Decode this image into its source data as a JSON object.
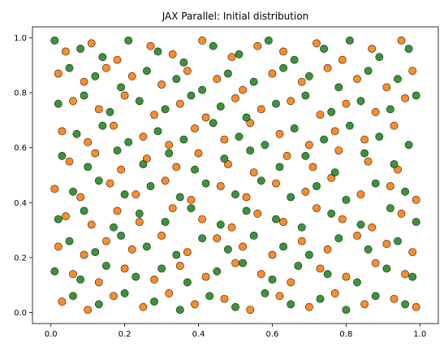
{
  "chart_data": {
    "type": "scatter",
    "title": "JAX Parallel: Initial distribution",
    "xlabel": "",
    "ylabel": "",
    "xlim": [
      -0.05,
      1.05
    ],
    "ylim": [
      -0.04,
      1.04
    ],
    "x_ticks": [
      0.0,
      0.2,
      0.4,
      0.6,
      0.8,
      1.0
    ],
    "x_tick_labels": [
      "0.0",
      "0.2",
      "0.4",
      "0.6",
      "0.8",
      "1.0"
    ],
    "y_ticks": [
      0.0,
      0.2,
      0.4,
      0.6,
      0.8,
      1.0
    ],
    "y_tick_labels": [
      "0.0",
      "0.2",
      "0.4",
      "0.6",
      "0.8",
      "1.0"
    ],
    "grid": false,
    "legend": "none",
    "series": [
      {
        "color": "#ff7f0e",
        "values": [
          [
            0.04,
            0.95
          ],
          [
            0.11,
            0.98
          ],
          [
            0.18,
            0.92
          ],
          [
            0.27,
            0.97
          ],
          [
            0.33,
            0.94
          ],
          [
            0.41,
            0.99
          ],
          [
            0.49,
            0.93
          ],
          [
            0.56,
            0.97
          ],
          [
            0.63,
            0.95
          ],
          [
            0.72,
            0.98
          ],
          [
            0.79,
            0.92
          ],
          [
            0.87,
            0.96
          ],
          [
            0.95,
            0.99
          ],
          [
            0.02,
            0.87
          ],
          [
            0.09,
            0.84
          ],
          [
            0.15,
            0.89
          ],
          [
            0.22,
            0.86
          ],
          [
            0.3,
            0.83
          ],
          [
            0.37,
            0.88
          ],
          [
            0.45,
            0.85
          ],
          [
            0.52,
            0.81
          ],
          [
            0.6,
            0.87
          ],
          [
            0.68,
            0.84
          ],
          [
            0.75,
            0.89
          ],
          [
            0.83,
            0.85
          ],
          [
            0.91,
            0.82
          ],
          [
            0.98,
            0.88
          ],
          [
            0.06,
            0.77
          ],
          [
            0.13,
            0.74
          ],
          [
            0.2,
            0.79
          ],
          [
            0.28,
            0.72
          ],
          [
            0.35,
            0.76
          ],
          [
            0.42,
            0.71
          ],
          [
            0.5,
            0.78
          ],
          [
            0.57,
            0.74
          ],
          [
            0.65,
            0.77
          ],
          [
            0.73,
            0.72
          ],
          [
            0.8,
            0.76
          ],
          [
            0.88,
            0.73
          ],
          [
            0.96,
            0.78
          ],
          [
            0.03,
            0.66
          ],
          [
            0.1,
            0.62
          ],
          [
            0.17,
            0.68
          ],
          [
            0.25,
            0.64
          ],
          [
            0.32,
            0.61
          ],
          [
            0.39,
            0.67
          ],
          [
            0.47,
            0.63
          ],
          [
            0.54,
            0.69
          ],
          [
            0.62,
            0.65
          ],
          [
            0.7,
            0.61
          ],
          [
            0.77,
            0.66
          ],
          [
            0.85,
            0.63
          ],
          [
            0.93,
            0.68
          ],
          [
            0.05,
            0.55
          ],
          [
            0.12,
            0.58
          ],
          [
            0.19,
            0.52
          ],
          [
            0.26,
            0.56
          ],
          [
            0.34,
            0.53
          ],
          [
            0.4,
            0.58
          ],
          [
            0.48,
            0.54
          ],
          [
            0.55,
            0.51
          ],
          [
            0.64,
            0.57
          ],
          [
            0.71,
            0.53
          ],
          [
            0.78,
            0.59
          ],
          [
            0.86,
            0.55
          ],
          [
            0.94,
            0.52
          ],
          [
            0.01,
            0.45
          ],
          [
            0.08,
            0.42
          ],
          [
            0.16,
            0.47
          ],
          [
            0.23,
            0.43
          ],
          [
            0.31,
            0.48
          ],
          [
            0.38,
            0.41
          ],
          [
            0.46,
            0.46
          ],
          [
            0.53,
            0.42
          ],
          [
            0.61,
            0.47
          ],
          [
            0.69,
            0.44
          ],
          [
            0.76,
            0.49
          ],
          [
            0.84,
            0.43
          ],
          [
            0.92,
            0.46
          ],
          [
            0.99,
            0.41
          ],
          [
            0.04,
            0.35
          ],
          [
            0.11,
            0.32
          ],
          [
            0.18,
            0.37
          ],
          [
            0.24,
            0.33
          ],
          [
            0.33,
            0.38
          ],
          [
            0.41,
            0.34
          ],
          [
            0.49,
            0.31
          ],
          [
            0.56,
            0.36
          ],
          [
            0.63,
            0.33
          ],
          [
            0.72,
            0.38
          ],
          [
            0.79,
            0.34
          ],
          [
            0.87,
            0.31
          ],
          [
            0.95,
            0.36
          ],
          [
            0.02,
            0.24
          ],
          [
            0.09,
            0.21
          ],
          [
            0.15,
            0.26
          ],
          [
            0.22,
            0.23
          ],
          [
            0.3,
            0.28
          ],
          [
            0.37,
            0.22
          ],
          [
            0.45,
            0.27
          ],
          [
            0.52,
            0.24
          ],
          [
            0.6,
            0.21
          ],
          [
            0.68,
            0.26
          ],
          [
            0.75,
            0.23
          ],
          [
            0.83,
            0.28
          ],
          [
            0.91,
            0.25
          ],
          [
            0.98,
            0.22
          ],
          [
            0.06,
            0.14
          ],
          [
            0.13,
            0.11
          ],
          [
            0.2,
            0.16
          ],
          [
            0.28,
            0.12
          ],
          [
            0.35,
            0.17
          ],
          [
            0.42,
            0.13
          ],
          [
            0.5,
            0.18
          ],
          [
            0.57,
            0.14
          ],
          [
            0.65,
            0.11
          ],
          [
            0.73,
            0.16
          ],
          [
            0.8,
            0.13
          ],
          [
            0.88,
            0.18
          ],
          [
            0.96,
            0.14
          ],
          [
            0.03,
            0.04
          ],
          [
            0.1,
            0.01
          ],
          [
            0.17,
            0.06
          ],
          [
            0.25,
            0.02
          ],
          [
            0.32,
            0.07
          ],
          [
            0.39,
            0.03
          ],
          [
            0.47,
            0.05
          ],
          [
            0.54,
            0.01
          ],
          [
            0.62,
            0.06
          ],
          [
            0.7,
            0.02
          ],
          [
            0.77,
            0.07
          ],
          [
            0.85,
            0.03
          ],
          [
            0.93,
            0.05
          ],
          [
            0.99,
            0.02
          ]
        ]
      },
      {
        "color": "#228b22",
        "values": [
          [
            0.01,
            0.99
          ],
          [
            0.08,
            0.96
          ],
          [
            0.14,
            0.93
          ],
          [
            0.21,
            0.99
          ],
          [
            0.29,
            0.95
          ],
          [
            0.36,
            0.91
          ],
          [
            0.44,
            0.97
          ],
          [
            0.51,
            0.94
          ],
          [
            0.59,
            0.99
          ],
          [
            0.66,
            0.92
          ],
          [
            0.74,
            0.96
          ],
          [
            0.81,
            0.99
          ],
          [
            0.89,
            0.93
          ],
          [
            0.97,
            0.96
          ],
          [
            0.05,
            0.89
          ],
          [
            0.12,
            0.86
          ],
          [
            0.19,
            0.82
          ],
          [
            0.26,
            0.88
          ],
          [
            0.34,
            0.85
          ],
          [
            0.41,
            0.81
          ],
          [
            0.48,
            0.87
          ],
          [
            0.55,
            0.84
          ],
          [
            0.63,
            0.89
          ],
          [
            0.7,
            0.86
          ],
          [
            0.78,
            0.82
          ],
          [
            0.86,
            0.88
          ],
          [
            0.94,
            0.85
          ],
          [
            0.02,
            0.76
          ],
          [
            0.09,
            0.79
          ],
          [
            0.16,
            0.73
          ],
          [
            0.24,
            0.77
          ],
          [
            0.31,
            0.74
          ],
          [
            0.38,
            0.79
          ],
          [
            0.46,
            0.75
          ],
          [
            0.53,
            0.71
          ],
          [
            0.61,
            0.76
          ],
          [
            0.69,
            0.79
          ],
          [
            0.76,
            0.73
          ],
          [
            0.84,
            0.77
          ],
          [
            0.92,
            0.74
          ],
          [
            0.99,
            0.79
          ],
          [
            0.07,
            0.65
          ],
          [
            0.14,
            0.68
          ],
          [
            0.21,
            0.62
          ],
          [
            0.29,
            0.66
          ],
          [
            0.36,
            0.63
          ],
          [
            0.44,
            0.69
          ],
          [
            0.51,
            0.64
          ],
          [
            0.58,
            0.61
          ],
          [
            0.66,
            0.67
          ],
          [
            0.74,
            0.63
          ],
          [
            0.81,
            0.68
          ],
          [
            0.89,
            0.64
          ],
          [
            0.97,
            0.61
          ],
          [
            0.03,
            0.57
          ],
          [
            0.1,
            0.53
          ],
          [
            0.18,
            0.59
          ],
          [
            0.25,
            0.54
          ],
          [
            0.32,
            0.58
          ],
          [
            0.39,
            0.52
          ],
          [
            0.47,
            0.56
          ],
          [
            0.54,
            0.59
          ],
          [
            0.62,
            0.53
          ],
          [
            0.69,
            0.57
          ],
          [
            0.77,
            0.51
          ],
          [
            0.85,
            0.58
          ],
          [
            0.93,
            0.54
          ],
          [
            0.06,
            0.44
          ],
          [
            0.13,
            0.48
          ],
          [
            0.2,
            0.43
          ],
          [
            0.27,
            0.46
          ],
          [
            0.35,
            0.42
          ],
          [
            0.42,
            0.47
          ],
          [
            0.5,
            0.43
          ],
          [
            0.57,
            0.48
          ],
          [
            0.65,
            0.42
          ],
          [
            0.72,
            0.46
          ],
          [
            0.8,
            0.41
          ],
          [
            0.88,
            0.47
          ],
          [
            0.96,
            0.44
          ],
          [
            0.02,
            0.34
          ],
          [
            0.09,
            0.37
          ],
          [
            0.17,
            0.31
          ],
          [
            0.24,
            0.36
          ],
          [
            0.31,
            0.33
          ],
          [
            0.38,
            0.38
          ],
          [
            0.46,
            0.32
          ],
          [
            0.53,
            0.37
          ],
          [
            0.61,
            0.34
          ],
          [
            0.68,
            0.31
          ],
          [
            0.76,
            0.36
          ],
          [
            0.84,
            0.32
          ],
          [
            0.92,
            0.38
          ],
          [
            0.99,
            0.33
          ],
          [
            0.05,
            0.26
          ],
          [
            0.12,
            0.22
          ],
          [
            0.19,
            0.28
          ],
          [
            0.26,
            0.24
          ],
          [
            0.34,
            0.21
          ],
          [
            0.41,
            0.27
          ],
          [
            0.48,
            0.23
          ],
          [
            0.55,
            0.28
          ],
          [
            0.63,
            0.24
          ],
          [
            0.7,
            0.21
          ],
          [
            0.78,
            0.27
          ],
          [
            0.86,
            0.23
          ],
          [
            0.94,
            0.26
          ],
          [
            0.01,
            0.15
          ],
          [
            0.08,
            0.12
          ],
          [
            0.15,
            0.17
          ],
          [
            0.23,
            0.13
          ],
          [
            0.3,
            0.16
          ],
          [
            0.37,
            0.11
          ],
          [
            0.45,
            0.15
          ],
          [
            0.52,
            0.18
          ],
          [
            0.6,
            0.12
          ],
          [
            0.67,
            0.17
          ],
          [
            0.75,
            0.14
          ],
          [
            0.83,
            0.11
          ],
          [
            0.91,
            0.16
          ],
          [
            0.98,
            0.13
          ],
          [
            0.06,
            0.06
          ],
          [
            0.13,
            0.03
          ],
          [
            0.2,
            0.07
          ],
          [
            0.28,
            0.04
          ],
          [
            0.35,
            0.01
          ],
          [
            0.43,
            0.06
          ],
          [
            0.5,
            0.02
          ],
          [
            0.58,
            0.07
          ],
          [
            0.65,
            0.03
          ],
          [
            0.73,
            0.05
          ],
          [
            0.8,
            0.01
          ],
          [
            0.88,
            0.06
          ],
          [
            0.96,
            0.03
          ]
        ]
      }
    ]
  }
}
